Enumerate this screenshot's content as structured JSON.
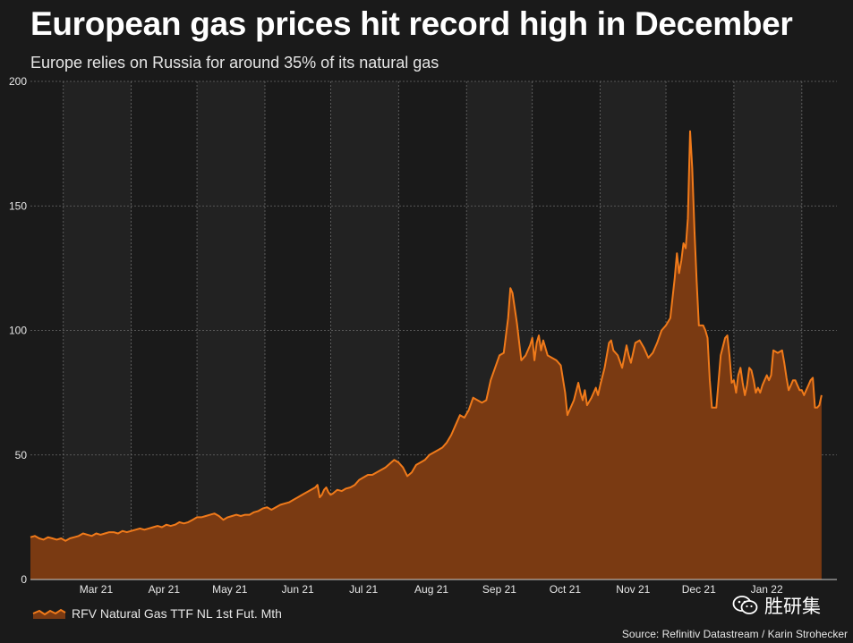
{
  "header": {
    "title": "European gas prices hit record high in December",
    "subtitle": "Europe relies on Russia for around 35% of its natural gas"
  },
  "footer": {
    "source": "Source: Refinitiv Datastream / Karin Strohecker",
    "watermark_text": "胜研集",
    "watermark_icon": "wechat-icon"
  },
  "colors": {
    "background": "#1a1a1a",
    "band": "#222222",
    "line": "#f07a1a",
    "fill": "#7a3a12",
    "grid": "#6a6a6a",
    "text": "#ffffff"
  },
  "chart_data": {
    "type": "area",
    "title": "European gas prices hit record high in December",
    "subtitle": "Europe relies on Russia for around 35% of its natural gas",
    "xlabel": "",
    "ylabel": "",
    "ylim": [
      0,
      200
    ],
    "yticks": [
      0,
      50,
      100,
      150,
      200
    ],
    "x_month_labels": [
      "Mar 21",
      "Apr 21",
      "May 21",
      "Jun 21",
      "Jul 21",
      "Aug 21",
      "Sep 21",
      "Oct 21",
      "Nov 21",
      "Dec 21",
      "Jan 22"
    ],
    "x_month_label_days": [
      30,
      61,
      91,
      122,
      152,
      183,
      214,
      244,
      275,
      305,
      336
    ],
    "x_month_boundary_days": [
      15,
      46,
      76,
      107,
      137,
      168,
      199,
      229,
      260,
      290,
      321,
      352
    ],
    "x_range_days": [
      0,
      368
    ],
    "legend": "bottom-left",
    "grid": true,
    "series": [
      {
        "name": "RFV Natural Gas TTF NL 1st Fut. Mth",
        "points": [
          [
            0,
            17
          ],
          [
            2,
            17.5
          ],
          [
            4,
            16.5
          ],
          [
            6,
            16
          ],
          [
            8,
            17
          ],
          [
            10,
            16.5
          ],
          [
            12,
            16
          ],
          [
            14,
            16.5
          ],
          [
            16,
            15.5
          ],
          [
            18,
            16.5
          ],
          [
            20,
            17
          ],
          [
            22,
            17.5
          ],
          [
            24,
            18.5
          ],
          [
            26,
            18
          ],
          [
            28,
            17.5
          ],
          [
            30,
            18.5
          ],
          [
            32,
            18
          ],
          [
            34,
            18.5
          ],
          [
            36,
            19
          ],
          [
            38,
            19
          ],
          [
            40,
            18.5
          ],
          [
            42,
            19.5
          ],
          [
            44,
            19
          ],
          [
            46,
            19.5
          ],
          [
            48,
            20
          ],
          [
            50,
            20.5
          ],
          [
            52,
            20
          ],
          [
            54,
            20.5
          ],
          [
            56,
            21
          ],
          [
            58,
            21.5
          ],
          [
            60,
            21
          ],
          [
            62,
            22
          ],
          [
            64,
            21.5
          ],
          [
            66,
            22
          ],
          [
            68,
            23
          ],
          [
            70,
            22.5
          ],
          [
            72,
            23
          ],
          [
            74,
            24
          ],
          [
            76,
            25
          ],
          [
            78,
            25
          ],
          [
            80,
            25.5
          ],
          [
            82,
            26
          ],
          [
            84,
            26.5
          ],
          [
            86,
            25.5
          ],
          [
            88,
            24
          ],
          [
            90,
            25
          ],
          [
            92,
            25.5
          ],
          [
            94,
            26
          ],
          [
            96,
            25.5
          ],
          [
            98,
            26
          ],
          [
            100,
            26
          ],
          [
            102,
            27
          ],
          [
            104,
            27.5
          ],
          [
            106,
            28.5
          ],
          [
            108,
            29
          ],
          [
            110,
            28
          ],
          [
            112,
            29
          ],
          [
            114,
            30
          ],
          [
            116,
            30.5
          ],
          [
            118,
            31
          ],
          [
            120,
            32
          ],
          [
            122,
            33
          ],
          [
            124,
            34
          ],
          [
            126,
            35
          ],
          [
            128,
            36
          ],
          [
            130,
            37
          ],
          [
            131,
            38
          ],
          [
            132,
            33
          ],
          [
            133,
            34
          ],
          [
            134,
            36
          ],
          [
            135,
            37
          ],
          [
            136,
            35
          ],
          [
            137,
            34
          ],
          [
            138,
            34.5
          ],
          [
            140,
            36
          ],
          [
            142,
            35.5
          ],
          [
            144,
            36.5
          ],
          [
            146,
            37
          ],
          [
            148,
            38
          ],
          [
            150,
            40
          ],
          [
            152,
            41
          ],
          [
            154,
            42
          ],
          [
            156,
            42
          ],
          [
            158,
            43
          ],
          [
            160,
            44
          ],
          [
            162,
            45
          ],
          [
            164,
            46.5
          ],
          [
            166,
            48
          ],
          [
            168,
            47
          ],
          [
            170,
            45
          ],
          [
            172,
            41.5
          ],
          [
            174,
            43
          ],
          [
            176,
            46
          ],
          [
            178,
            47
          ],
          [
            180,
            48
          ],
          [
            182,
            50
          ],
          [
            184,
            51
          ],
          [
            186,
            52
          ],
          [
            188,
            53
          ],
          [
            190,
            55
          ],
          [
            192,
            58
          ],
          [
            194,
            62
          ],
          [
            196,
            66
          ],
          [
            198,
            65
          ],
          [
            200,
            68
          ],
          [
            202,
            73
          ],
          [
            204,
            72
          ],
          [
            206,
            71
          ],
          [
            208,
            72
          ],
          [
            210,
            80
          ],
          [
            212,
            85
          ],
          [
            214,
            90
          ],
          [
            216,
            91
          ],
          [
            218,
            105
          ],
          [
            219,
            117
          ],
          [
            220,
            115
          ],
          [
            222,
            103
          ],
          [
            224,
            88
          ],
          [
            226,
            90
          ],
          [
            228,
            94
          ],
          [
            229,
            97
          ],
          [
            230,
            88
          ],
          [
            231,
            95
          ],
          [
            232,
            98
          ],
          [
            233,
            92
          ],
          [
            234,
            96
          ],
          [
            236,
            90
          ],
          [
            238,
            89
          ],
          [
            240,
            88
          ],
          [
            242,
            86
          ],
          [
            244,
            75
          ],
          [
            245,
            66
          ],
          [
            246,
            68
          ],
          [
            248,
            72
          ],
          [
            250,
            79
          ],
          [
            251,
            75
          ],
          [
            252,
            72
          ],
          [
            253,
            76
          ],
          [
            254,
            70
          ],
          [
            256,
            73
          ],
          [
            258,
            77
          ],
          [
            259,
            74
          ],
          [
            260,
            78
          ],
          [
            262,
            85
          ],
          [
            264,
            95
          ],
          [
            265,
            96
          ],
          [
            266,
            92
          ],
          [
            268,
            90
          ],
          [
            270,
            85
          ],
          [
            272,
            94
          ],
          [
            273,
            90
          ],
          [
            274,
            87
          ],
          [
            276,
            95
          ],
          [
            278,
            96
          ],
          [
            280,
            93
          ],
          [
            282,
            89
          ],
          [
            284,
            91
          ],
          [
            286,
            95
          ],
          [
            288,
            100
          ],
          [
            290,
            102
          ],
          [
            292,
            105
          ],
          [
            294,
            121
          ],
          [
            295,
            131
          ],
          [
            296,
            123
          ],
          [
            297,
            128
          ],
          [
            298,
            135
          ],
          [
            299,
            133
          ],
          [
            300,
            145
          ],
          [
            301,
            180
          ],
          [
            302,
            165
          ],
          [
            303,
            140
          ],
          [
            304,
            120
          ],
          [
            305,
            102
          ],
          [
            307,
            102
          ],
          [
            308,
            100
          ],
          [
            309,
            97
          ],
          [
            310,
            80
          ],
          [
            311,
            69
          ],
          [
            313,
            69
          ],
          [
            315,
            90
          ],
          [
            317,
            97
          ],
          [
            318,
            98
          ],
          [
            319,
            90
          ],
          [
            320,
            79
          ],
          [
            321,
            80
          ],
          [
            322,
            75
          ],
          [
            323,
            82
          ],
          [
            324,
            85
          ],
          [
            325,
            79
          ],
          [
            326,
            74
          ],
          [
            327,
            78
          ],
          [
            328,
            85
          ],
          [
            329,
            84
          ],
          [
            330,
            80
          ],
          [
            331,
            75
          ],
          [
            332,
            77
          ],
          [
            333,
            75
          ],
          [
            334,
            78
          ],
          [
            335,
            80
          ],
          [
            336,
            82
          ],
          [
            337,
            80
          ],
          [
            338,
            82
          ],
          [
            339,
            92
          ],
          [
            341,
            91
          ],
          [
            343,
            92
          ],
          [
            344,
            87
          ],
          [
            345,
            81
          ],
          [
            346,
            76
          ],
          [
            347,
            78
          ],
          [
            348,
            80
          ],
          [
            349,
            80
          ],
          [
            350,
            78
          ],
          [
            351,
            76
          ],
          [
            352,
            76
          ],
          [
            353,
            74
          ],
          [
            354,
            76
          ],
          [
            355,
            78
          ],
          [
            356,
            80
          ],
          [
            357,
            81
          ],
          [
            358,
            69
          ],
          [
            359,
            69
          ],
          [
            360,
            70
          ],
          [
            361,
            74
          ]
        ]
      }
    ]
  }
}
